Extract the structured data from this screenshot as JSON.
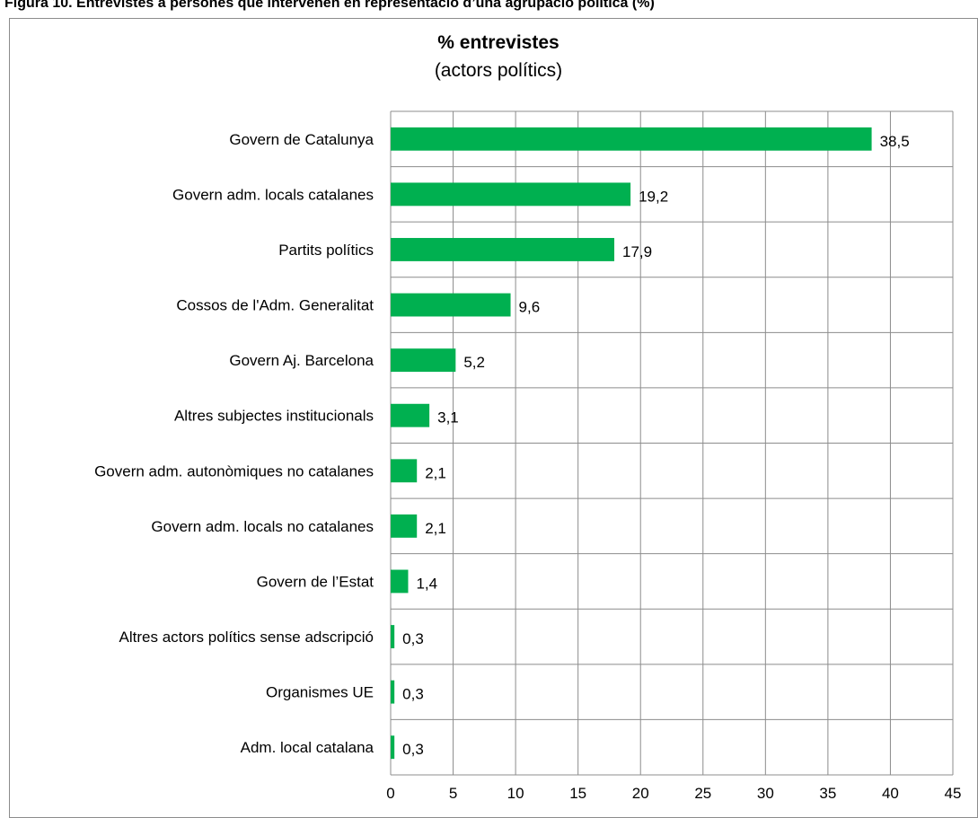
{
  "figure_caption": "Figura 10. Entrevistes a persones que intervenen en representació d’una agrupació política (%)",
  "chart_data": {
    "type": "bar",
    "orientation": "horizontal",
    "title": "% entrevistes",
    "subtitle": "(actors polítics)",
    "xlabel": "",
    "ylabel": "",
    "xlim": [
      0,
      45
    ],
    "x_ticks": [
      0,
      5,
      10,
      15,
      20,
      25,
      30,
      35,
      40,
      45
    ],
    "grid": true,
    "legend": "none",
    "bar_color": "#00b050",
    "categories": [
      "Govern de Catalunya",
      "Govern adm. locals catalanes",
      "Partits polítics",
      "Cossos de l'Adm. Generalitat",
      "Govern Aj. Barcelona",
      "Altres subjectes institucionals",
      "Govern adm. autonòmiques no catalanes",
      "Govern adm. locals no catalanes",
      "Govern de l’Estat",
      "Altres actors polítics sense adscripció",
      "Organismes UE",
      "Adm. local catalana"
    ],
    "values": [
      38.5,
      19.2,
      17.9,
      9.6,
      5.2,
      3.1,
      2.1,
      2.1,
      1.4,
      0.3,
      0.3,
      0.3
    ],
    "data_labels": [
      "38,5",
      "19,2",
      "17,9",
      "9,6",
      "5,2",
      "3,1",
      "2,1",
      "2,1",
      "1,4",
      "0,3",
      "0,3",
      "0,3"
    ]
  }
}
